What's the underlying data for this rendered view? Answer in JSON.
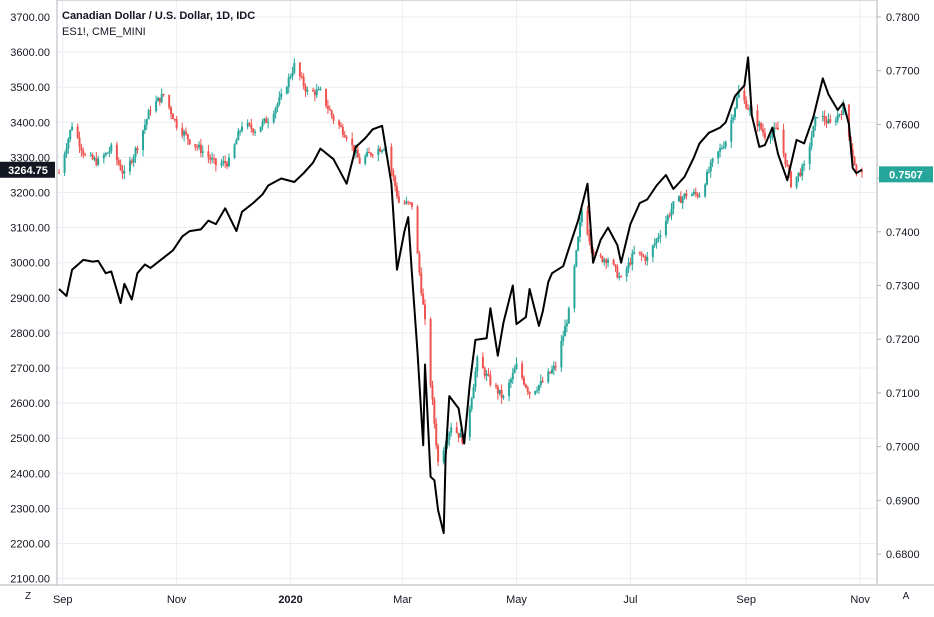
{
  "legend": {
    "main_title": "Canadian Dollar / U.S. Dollar, 1D, IDC",
    "overlay_title": "ES1!, CME_MINI"
  },
  "footer": {
    "left_button": "Z",
    "right_button": "A"
  },
  "chart_data": {
    "type": "line",
    "colors": {
      "up": "#26a69a",
      "down": "#ef5350",
      "overlay_line": "#000000",
      "grid": "#eceef2",
      "last_left_badge": "#131722",
      "last_right_badge": "#26a69a"
    },
    "grid": true,
    "left_axis": {
      "ylim": [
        2100,
        3700
      ],
      "ticks": [
        "3700.00",
        "3600.00",
        "3500.00",
        "3400.00",
        "3300.00",
        "3200.00",
        "3100.00",
        "3000.00",
        "2900.00",
        "2800.00",
        "2700.00",
        "2600.00",
        "2500.00",
        "2400.00",
        "2300.00",
        "2200.00",
        "2100.00"
      ],
      "last_value": "3264.75"
    },
    "right_axis": {
      "ylim": [
        0.6785,
        0.7826
      ],
      "ticks": [
        "0.7800",
        "0.7700",
        "0.7600",
        "0.7500",
        "0.7400",
        "0.7300",
        "0.7200",
        "0.7100",
        "0.7000",
        "0.6900",
        "0.6800"
      ],
      "last_value": "0.7507"
    },
    "x_axis": {
      "range": [
        "2019-08-30",
        "2020-11-02"
      ],
      "ticks": [
        {
          "label": "Sep",
          "date": "2019-09-01"
        },
        {
          "label": "Nov",
          "date": "2019-11-01"
        },
        {
          "label": "2020",
          "date": "2020-01-01",
          "bold": true
        },
        {
          "label": "Mar",
          "date": "2020-03-01"
        },
        {
          "label": "May",
          "date": "2020-05-01"
        },
        {
          "label": "Jul",
          "date": "2020-07-01"
        },
        {
          "label": "Sep",
          "date": "2020-09-01"
        },
        {
          "label": "Nov",
          "date": "2020-11-01"
        }
      ]
    },
    "series": [
      {
        "name": "ES1!, CME_MINI",
        "kind": "line",
        "axis": "left",
        "points": [
          [
            "2019-08-30",
            2925
          ],
          [
            "2019-09-03",
            2905
          ],
          [
            "2019-09-06",
            2980
          ],
          [
            "2019-09-12",
            3008
          ],
          [
            "2019-09-17",
            3003
          ],
          [
            "2019-09-20",
            3005
          ],
          [
            "2019-09-24",
            2970
          ],
          [
            "2019-09-27",
            2975
          ],
          [
            "2019-10-02",
            2885
          ],
          [
            "2019-10-04",
            2940
          ],
          [
            "2019-10-08",
            2895
          ],
          [
            "2019-10-11",
            2970
          ],
          [
            "2019-10-15",
            2995
          ],
          [
            "2019-10-18",
            2985
          ],
          [
            "2019-10-24",
            3010
          ],
          [
            "2019-10-30",
            3035
          ],
          [
            "2019-11-04",
            3075
          ],
          [
            "2019-11-08",
            3090
          ],
          [
            "2019-11-14",
            3095
          ],
          [
            "2019-11-18",
            3120
          ],
          [
            "2019-11-22",
            3110
          ],
          [
            "2019-11-27",
            3155
          ],
          [
            "2019-12-03",
            3090
          ],
          [
            "2019-12-06",
            3145
          ],
          [
            "2019-12-12",
            3170
          ],
          [
            "2019-12-17",
            3195
          ],
          [
            "2019-12-20",
            3220
          ],
          [
            "2019-12-27",
            3240
          ],
          [
            "2020-01-03",
            3230
          ],
          [
            "2020-01-08",
            3255
          ],
          [
            "2020-01-13",
            3285
          ],
          [
            "2020-01-17",
            3325
          ],
          [
            "2020-01-24",
            3295
          ],
          [
            "2020-01-31",
            3225
          ],
          [
            "2020-02-05",
            3330
          ],
          [
            "2020-02-10",
            3355
          ],
          [
            "2020-02-14",
            3380
          ],
          [
            "2020-02-19",
            3390
          ],
          [
            "2020-02-24",
            3225
          ],
          [
            "2020-02-27",
            2980
          ],
          [
            "2020-03-02",
            3090
          ],
          [
            "2020-03-04",
            3130
          ],
          [
            "2020-03-06",
            2970
          ],
          [
            "2020-03-09",
            2745
          ],
          [
            "2020-03-12",
            2480
          ],
          [
            "2020-03-13",
            2710
          ],
          [
            "2020-03-16",
            2390
          ],
          [
            "2020-03-18",
            2380
          ],
          [
            "2020-03-20",
            2295
          ],
          [
            "2020-03-23",
            2230
          ],
          [
            "2020-03-24",
            2445
          ],
          [
            "2020-03-26",
            2620
          ],
          [
            "2020-03-31",
            2585
          ],
          [
            "2020-04-03",
            2485
          ],
          [
            "2020-04-06",
            2655
          ],
          [
            "2020-04-09",
            2780
          ],
          [
            "2020-04-15",
            2785
          ],
          [
            "2020-04-17",
            2870
          ],
          [
            "2020-04-21",
            2735
          ],
          [
            "2020-04-24",
            2830
          ],
          [
            "2020-04-29",
            2935
          ],
          [
            "2020-05-01",
            2825
          ],
          [
            "2020-05-06",
            2845
          ],
          [
            "2020-05-08",
            2925
          ],
          [
            "2020-05-13",
            2820
          ],
          [
            "2020-05-15",
            2860
          ],
          [
            "2020-05-18",
            2945
          ],
          [
            "2020-05-20",
            2970
          ],
          [
            "2020-05-26",
            2990
          ],
          [
            "2020-05-29",
            3040
          ],
          [
            "2020-06-03",
            3120
          ],
          [
            "2020-06-08",
            3225
          ],
          [
            "2020-06-11",
            3000
          ],
          [
            "2020-06-15",
            3065
          ],
          [
            "2020-06-19",
            3100
          ],
          [
            "2020-06-24",
            3050
          ],
          [
            "2020-06-26",
            3000
          ],
          [
            "2020-07-01",
            3110
          ],
          [
            "2020-07-06",
            3170
          ],
          [
            "2020-07-10",
            3180
          ],
          [
            "2020-07-15",
            3220
          ],
          [
            "2020-07-20",
            3250
          ],
          [
            "2020-07-24",
            3210
          ],
          [
            "2020-07-30",
            3245
          ],
          [
            "2020-08-04",
            3300
          ],
          [
            "2020-08-07",
            3340
          ],
          [
            "2020-08-12",
            3370
          ],
          [
            "2020-08-18",
            3385
          ],
          [
            "2020-08-21",
            3400
          ],
          [
            "2020-08-26",
            3475
          ],
          [
            "2020-08-31",
            3505
          ],
          [
            "2020-09-02",
            3585
          ],
          [
            "2020-09-04",
            3420
          ],
          [
            "2020-09-08",
            3330
          ],
          [
            "2020-09-11",
            3335
          ],
          [
            "2020-09-15",
            3385
          ],
          [
            "2020-09-18",
            3310
          ],
          [
            "2020-09-23",
            3235
          ],
          [
            "2020-09-28",
            3350
          ],
          [
            "2020-10-02",
            3340
          ],
          [
            "2020-10-07",
            3415
          ],
          [
            "2020-10-12",
            3525
          ],
          [
            "2020-10-15",
            3480
          ],
          [
            "2020-10-20",
            3435
          ],
          [
            "2020-10-23",
            3455
          ],
          [
            "2020-10-26",
            3395
          ],
          [
            "2020-10-28",
            3270
          ],
          [
            "2020-10-30",
            3255
          ],
          [
            "2020-11-02",
            3265
          ]
        ]
      },
      {
        "name": "Canadian Dollar / U.S. Dollar, 1D, IDC",
        "kind": "candlestick",
        "axis": "right",
        "points": [
          [
            "2019-08-30",
            0.751
          ],
          [
            "2019-09-06",
            0.76
          ],
          [
            "2019-09-13",
            0.754
          ],
          [
            "2019-09-20",
            0.753
          ],
          [
            "2019-09-27",
            0.7555
          ],
          [
            "2019-10-04",
            0.7505
          ],
          [
            "2019-10-11",
            0.756
          ],
          [
            "2019-10-18",
            0.763
          ],
          [
            "2019-10-25",
            0.7655
          ],
          [
            "2019-11-01",
            0.76
          ],
          [
            "2019-11-08",
            0.757
          ],
          [
            "2019-11-15",
            0.755
          ],
          [
            "2019-11-22",
            0.7525
          ],
          [
            "2019-11-29",
            0.753
          ],
          [
            "2019-12-06",
            0.76
          ],
          [
            "2019-12-13",
            0.759
          ],
          [
            "2019-12-20",
            0.761
          ],
          [
            "2019-12-27",
            0.765
          ],
          [
            "2020-01-03",
            0.771
          ],
          [
            "2020-01-10",
            0.766
          ],
          [
            "2020-01-17",
            0.766
          ],
          [
            "2020-01-24",
            0.761
          ],
          [
            "2020-01-31",
            0.758
          ],
          [
            "2020-02-07",
            0.753
          ],
          [
            "2020-02-14",
            0.755
          ],
          [
            "2020-02-21",
            0.756
          ],
          [
            "2020-02-28",
            0.7455
          ],
          [
            "2020-03-06",
            0.745
          ],
          [
            "2020-03-13",
            0.723
          ],
          [
            "2020-03-20",
            0.697
          ],
          [
            "2020-03-27",
            0.704
          ],
          [
            "2020-04-03",
            0.701
          ],
          [
            "2020-04-10",
            0.716
          ],
          [
            "2020-04-17",
            0.712
          ],
          [
            "2020-04-24",
            0.709
          ],
          [
            "2020-05-01",
            0.715
          ],
          [
            "2020-05-08",
            0.71
          ],
          [
            "2020-05-15",
            0.712
          ],
          [
            "2020-05-22",
            0.715
          ],
          [
            "2020-05-29",
            0.725
          ],
          [
            "2020-06-05",
            0.744
          ],
          [
            "2020-06-12",
            0.735
          ],
          [
            "2020-06-19",
            0.735
          ],
          [
            "2020-06-26",
            0.731
          ],
          [
            "2020-07-03",
            0.736
          ],
          [
            "2020-07-10",
            0.735
          ],
          [
            "2020-07-17",
            0.74
          ],
          [
            "2020-07-24",
            0.745
          ],
          [
            "2020-07-31",
            0.747
          ],
          [
            "2020-08-07",
            0.747
          ],
          [
            "2020-08-14",
            0.753
          ],
          [
            "2020-08-21",
            0.757
          ],
          [
            "2020-08-28",
            0.766
          ],
          [
            "2020-09-04",
            0.762
          ],
          [
            "2020-09-11",
            0.758
          ],
          [
            "2020-09-18",
            0.759
          ],
          [
            "2020-09-25",
            0.749
          ],
          [
            "2020-10-02",
            0.752
          ],
          [
            "2020-10-09",
            0.762
          ],
          [
            "2020-10-16",
            0.76
          ],
          [
            "2020-10-23",
            0.763
          ],
          [
            "2020-10-27",
            0.756
          ],
          [
            "2020-10-30",
            0.751
          ],
          [
            "2020-11-02",
            0.7507
          ]
        ]
      }
    ]
  }
}
